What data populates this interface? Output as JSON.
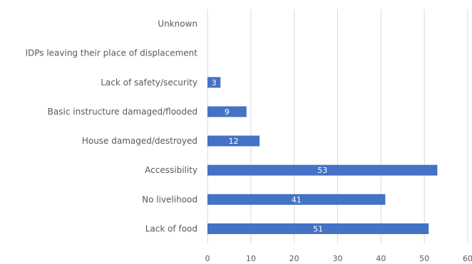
{
  "chart_data": {
    "type": "bar",
    "orientation": "horizontal",
    "categories": [
      "Unknown",
      "IDPs leaving their place of displacement",
      "Lack of safety/security",
      "Basic instructure damaged/flooded",
      "House damaged/destroyed",
      "Accessibility",
      "No livelihood",
      "Lack of food"
    ],
    "values": [
      0,
      0,
      3,
      9,
      12,
      53,
      41,
      51
    ],
    "data_labels": [
      "",
      "",
      "3",
      "9",
      "12",
      "53",
      "41",
      "51"
    ],
    "xlim": [
      0,
      60
    ],
    "x_ticks": [
      "0",
      "10",
      "20",
      "30",
      "40",
      "50",
      "60"
    ],
    "grid": "vertical",
    "bar_color": "#4472C4",
    "title": "",
    "xlabel": "",
    "ylabel": ""
  }
}
